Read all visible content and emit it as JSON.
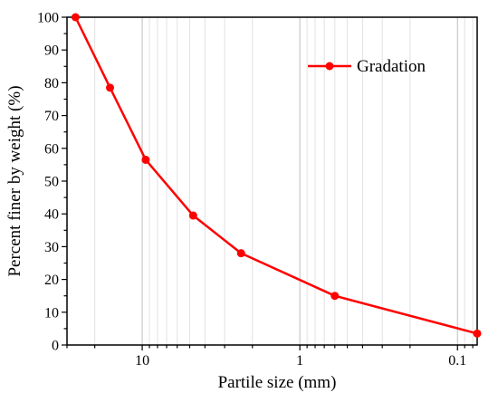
{
  "chart_data": {
    "type": "line",
    "xlabel": "Partile size (mm)",
    "ylabel": "Percent finer by weight (%)",
    "x_scale": "log",
    "x_reversed": true,
    "xlim": [
      30,
      0.075
    ],
    "ylim": [
      0,
      100
    ],
    "grid": true,
    "legend_position": "top-right",
    "x_ticks": [
      {
        "value": 10,
        "label": "10"
      },
      {
        "value": 1,
        "label": "1"
      },
      {
        "value": 0.1,
        "label": "0.1"
      }
    ],
    "y_ticks": [
      {
        "value": 0,
        "label": "0"
      },
      {
        "value": 10,
        "label": "10"
      },
      {
        "value": 20,
        "label": "20"
      },
      {
        "value": 30,
        "label": "30"
      },
      {
        "value": 40,
        "label": "40"
      },
      {
        "value": 50,
        "label": "50"
      },
      {
        "value": 60,
        "label": "60"
      },
      {
        "value": 70,
        "label": "70"
      },
      {
        "value": 80,
        "label": "80"
      },
      {
        "value": 90,
        "label": "90"
      },
      {
        "value": 100,
        "label": "100"
      }
    ],
    "series": [
      {
        "name": "Gradation",
        "color": "#ff0000",
        "x": [
          26.5,
          16,
          9.5,
          4.75,
          2.36,
          0.6,
          0.075
        ],
        "y": [
          100,
          78.5,
          56.5,
          39.5,
          28,
          15,
          3.5
        ]
      }
    ]
  }
}
